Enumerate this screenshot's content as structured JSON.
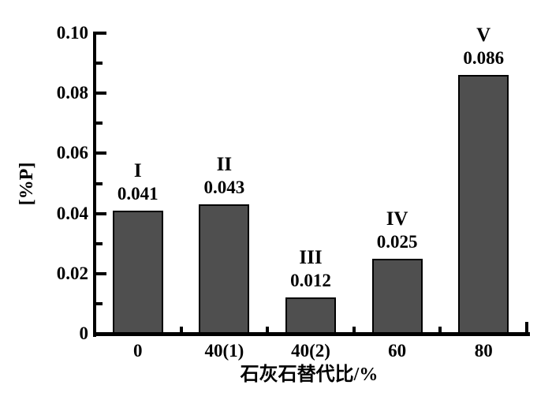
{
  "chart_data": {
    "type": "bar",
    "title": "",
    "xlabel": "石灰石替代比/%",
    "ylabel": "[%P]",
    "categories": [
      "0",
      "40(1)",
      "40(2)",
      "60",
      "80"
    ],
    "values": [
      0.041,
      0.043,
      0.012,
      0.025,
      0.086
    ],
    "value_labels": [
      "0.041",
      "0.043",
      "0.012",
      "0.025",
      "0.086"
    ],
    "bar_group_labels": [
      "I",
      "II",
      "III",
      "IV",
      "V"
    ],
    "ylim": [
      0,
      0.1
    ],
    "ytick_values": [
      0,
      0.02,
      0.04,
      0.06,
      0.08,
      0.1
    ],
    "ytick_labels": [
      "0",
      "0.02",
      "0.04",
      "0.06",
      "0.08",
      "0.10"
    ],
    "minor_ticks": true,
    "grid": false,
    "legend": null,
    "bar_color": "#4f4f4f",
    "bar_edge_color": "#000000",
    "axis_color": "#000000",
    "background": "#ffffff"
  }
}
